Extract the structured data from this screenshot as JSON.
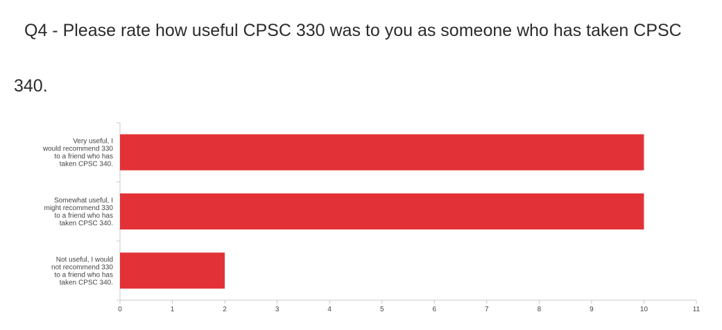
{
  "question": {
    "title": "Q4 - Please rate how useful CPSC 330 was to you as someone who has taken CPSC 340."
  },
  "colors": {
    "bar": "#e23237",
    "axis": "#c8c8c8",
    "text": "#2b2b2b"
  },
  "chart_data": {
    "type": "bar",
    "orientation": "horizontal",
    "categories": [
      "Very useful, I would recommend 330 to a friend who has taken CPSC 340.",
      "Somewhat useful, I might recommend 330 to a friend who has taken CPSC 340.",
      "Not useful, I would not recommend 330 to a friend who has taken CPSC 340."
    ],
    "category_lines": [
      [
        "Very useful, I",
        "would recommend 330",
        "to a friend who has",
        "taken CPSC 340."
      ],
      [
        "Somewhat useful, I",
        "might recommend 330",
        "to a friend who has",
        "taken CPSC 340."
      ],
      [
        "Not useful, I would",
        "not recommend 330",
        "to a friend who has",
        "taken CPSC 340."
      ]
    ],
    "values": [
      10,
      10,
      2
    ],
    "xlim": [
      0,
      11
    ],
    "xticks": [
      "0",
      "1",
      "2",
      "3",
      "4",
      "5",
      "6",
      "7",
      "8",
      "9",
      "10",
      "11"
    ],
    "grid": false,
    "legend": "none"
  }
}
